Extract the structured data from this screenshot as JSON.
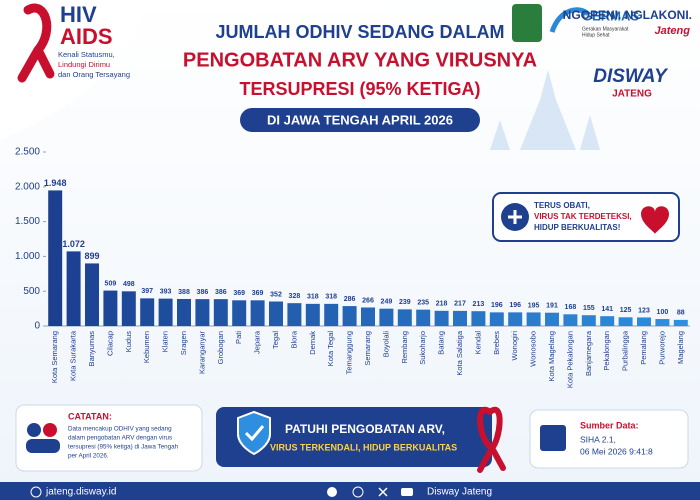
{
  "header": {
    "brand": "HIV",
    "brand2": "AIDS",
    "tagline": [
      "Kenali Statusmu,",
      "Lindungi Dirimu",
      "dan Orang Tersayang"
    ],
    "germas": "GERMAS",
    "germas_sub": [
      "Gerakan Masyarakat",
      "Hidup Sehat"
    ],
    "ngopeni": "NGOPENI. NGLAKONI.",
    "jateng": "Jateng",
    "disway": "DISWAY",
    "disway_sub": "JATENG"
  },
  "badge": [
    "TERUS OBATI,",
    "VIRUS TAK TERDETEKSI,",
    "HIDUP BERKUALITAS!"
  ],
  "chart_data": {
    "type": "bar",
    "title_lines": [
      "JUMLAH ODHIV SEDANG DALAM",
      "PENGOBATAN ARV YANG VIRUSNYA",
      "TERSUPRESI (95% KETIGA)"
    ],
    "subtitle": "DI JAWA TENGAH APRIL 2026",
    "categories": [
      "Kota Semarang",
      "Kota Surakarta",
      "Banyumas",
      "Cilacap",
      "Kudus",
      "Kebumen",
      "Klaten",
      "Sragen",
      "Karanganyar",
      "Grobogan",
      "Pati",
      "Jepara",
      "Tegal",
      "Blora",
      "Demak",
      "Kota Tegal",
      "Temanggung",
      "Semarang",
      "Boyolali",
      "Rembang",
      "Sukoharjo",
      "Batang",
      "Kota Salatiga",
      "Kendal",
      "Brebes",
      "Wonogiri",
      "Wonosobo",
      "Kota Magelang",
      "Kota Pekalongan",
      "Banjarnegara",
      "Pekalongan",
      "Purbalingga",
      "Pemalang",
      "Purworejo",
      "Magelang"
    ],
    "values": [
      1948,
      1072,
      899,
      509,
      498,
      397,
      393,
      388,
      386,
      386,
      369,
      369,
      352,
      328,
      318,
      318,
      286,
      266,
      249,
      239,
      235,
      218,
      217,
      213,
      196,
      196,
      195,
      191,
      168,
      155,
      141,
      125,
      123,
      100,
      88
    ],
    "value_labels": [
      "1.948",
      "1.072",
      "899",
      "509",
      "498",
      "397",
      "393",
      "388",
      "386",
      "386",
      "369",
      "369",
      "352",
      "328",
      "318",
      "318",
      "286",
      "266",
      "249",
      "239",
      "235",
      "218",
      "217",
      "213",
      "196",
      "196",
      "195",
      "191",
      "168",
      "155",
      "141",
      "125",
      "123",
      "100",
      "88"
    ],
    "colors": [
      "#1c3f90",
      "#2e8fe0"
    ],
    "ylim": [
      0,
      2500
    ],
    "yticks": [
      0,
      500,
      {
        "value": 1000,
        "label": "1.000"
      },
      {
        "value": 1500,
        "label": "1.500"
      },
      {
        "value": 2000,
        "label": "2.000"
      },
      {
        "value": 2500,
        "label": "2.500"
      }
    ]
  },
  "footer": {
    "note_title": "CATATAN:",
    "note": [
      "Data mencakup ODHIV yang sedang",
      "dalam pengobatan ARV dengan virus",
      "tersupresi (95% ketiga) di Jawa Tengah",
      "per April 2026."
    ],
    "cta": "PATUHI PENGOBATAN ARV,",
    "cta2": "VIRUS TERKENDALI, HIDUP BERKUALITAS",
    "source_title": "Sumber Data:",
    "source": [
      "SIHA 2.1,",
      "06 Mei 2026 9:41:8"
    ],
    "website": "jateng.disway.id",
    "social": "Disway Jateng"
  }
}
